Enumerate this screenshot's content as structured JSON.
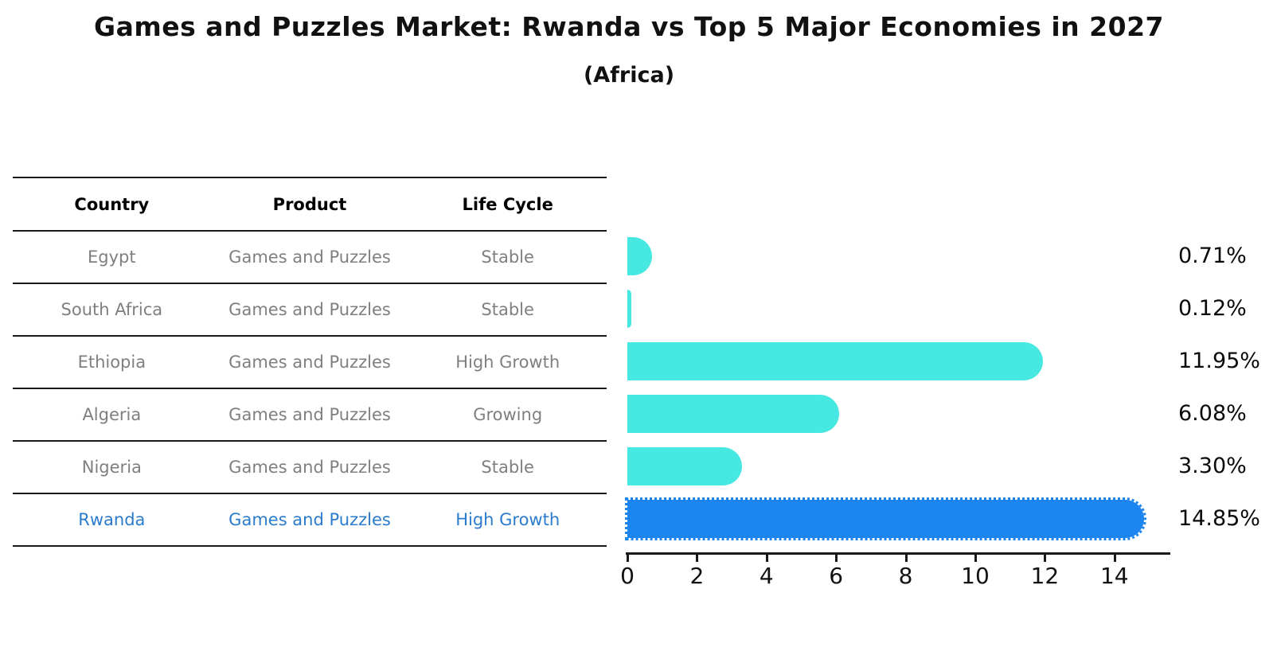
{
  "title": "Games and Puzzles Market: Rwanda vs Top 5 Major Economies in 2027",
  "subtitle": "(Africa)",
  "table": {
    "headers": [
      "Country",
      "Product",
      "Life Cycle"
    ],
    "rows": [
      {
        "country": "Egypt",
        "product": "Games and Puzzles",
        "life_cycle": "Stable",
        "highlight": false
      },
      {
        "country": "South Africa",
        "product": "Games and Puzzles",
        "life_cycle": "Stable",
        "highlight": false
      },
      {
        "country": "Ethiopia",
        "product": "Games and Puzzles",
        "life_cycle": "High Growth",
        "highlight": false
      },
      {
        "country": "Algeria",
        "product": "Games and Puzzles",
        "life_cycle": "Growing",
        "highlight": false
      },
      {
        "country": "Nigeria",
        "product": "Games and Puzzles",
        "life_cycle": "Stable",
        "highlight": false
      },
      {
        "country": "Rwanda",
        "product": "Games and Puzzles",
        "life_cycle": "High Growth",
        "highlight": true
      }
    ]
  },
  "chart_data": {
    "type": "bar",
    "orientation": "horizontal",
    "title": "Games and Puzzles Market: Rwanda vs Top 5 Major Economies in 2027 (Africa)",
    "categories": [
      "Egypt",
      "South Africa",
      "Ethiopia",
      "Algeria",
      "Nigeria",
      "Rwanda"
    ],
    "values": [
      0.71,
      0.12,
      11.95,
      6.08,
      3.3,
      14.85
    ],
    "value_labels": [
      "0.71%",
      "0.12%",
      "11.95%",
      "6.08%",
      "3.30%",
      "14.85%"
    ],
    "highlight_index": 5,
    "xticks": [
      0,
      2,
      4,
      6,
      8,
      10,
      12,
      14
    ],
    "xlim": [
      0,
      15.56
    ],
    "xlabel": "",
    "ylabel": "",
    "grid": false,
    "legend": false,
    "bar_color": "#48E8E2",
    "highlight_bar_color": "#1C85F0"
  },
  "colors": {
    "background": "#FFFFFF",
    "bar": "#48E8E2",
    "highlight_bar": "#1C85F0",
    "highlight_text": "#2B7CCC",
    "table_text": "#7F7F7F",
    "header_text": "#000000",
    "line": "#1A1A1A"
  }
}
